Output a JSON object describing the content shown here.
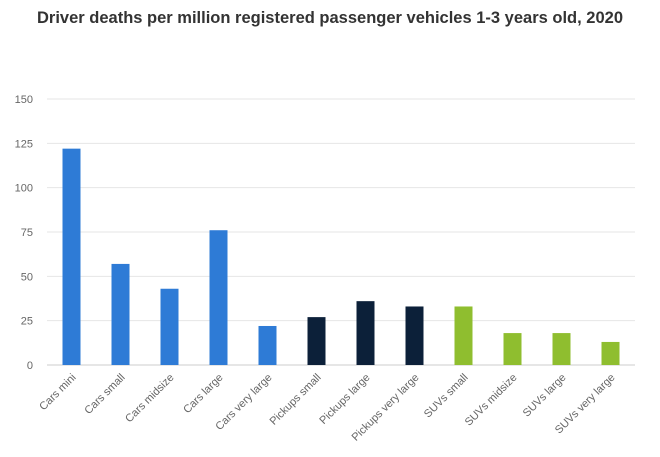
{
  "chart_data": {
    "type": "bar",
    "title": "Driver deaths per million registered passenger vehicles 1-3 years old, 2020",
    "xlabel": "",
    "ylabel": "",
    "ylim": [
      0,
      150
    ],
    "yticks": [
      0,
      25,
      50,
      75,
      100,
      125,
      150
    ],
    "grid": true,
    "categories": [
      "Cars mini",
      "Cars small",
      "Cars midsize",
      "Cars large",
      "Cars very large",
      "Pickups small",
      "Pickups large",
      "Pickups very large",
      "SUVs small",
      "SUVs midsize",
      "SUVs large",
      "SUVs very large"
    ],
    "values": [
      122,
      57,
      43,
      76,
      22,
      27,
      36,
      33,
      33,
      18,
      18,
      13
    ],
    "colors": [
      "#2e7bd6",
      "#2e7bd6",
      "#2e7bd6",
      "#2e7bd6",
      "#2e7bd6",
      "#0c2039",
      "#0c2039",
      "#0c2039",
      "#8fbe2f",
      "#8fbe2f",
      "#8fbe2f",
      "#8fbe2f"
    ]
  }
}
